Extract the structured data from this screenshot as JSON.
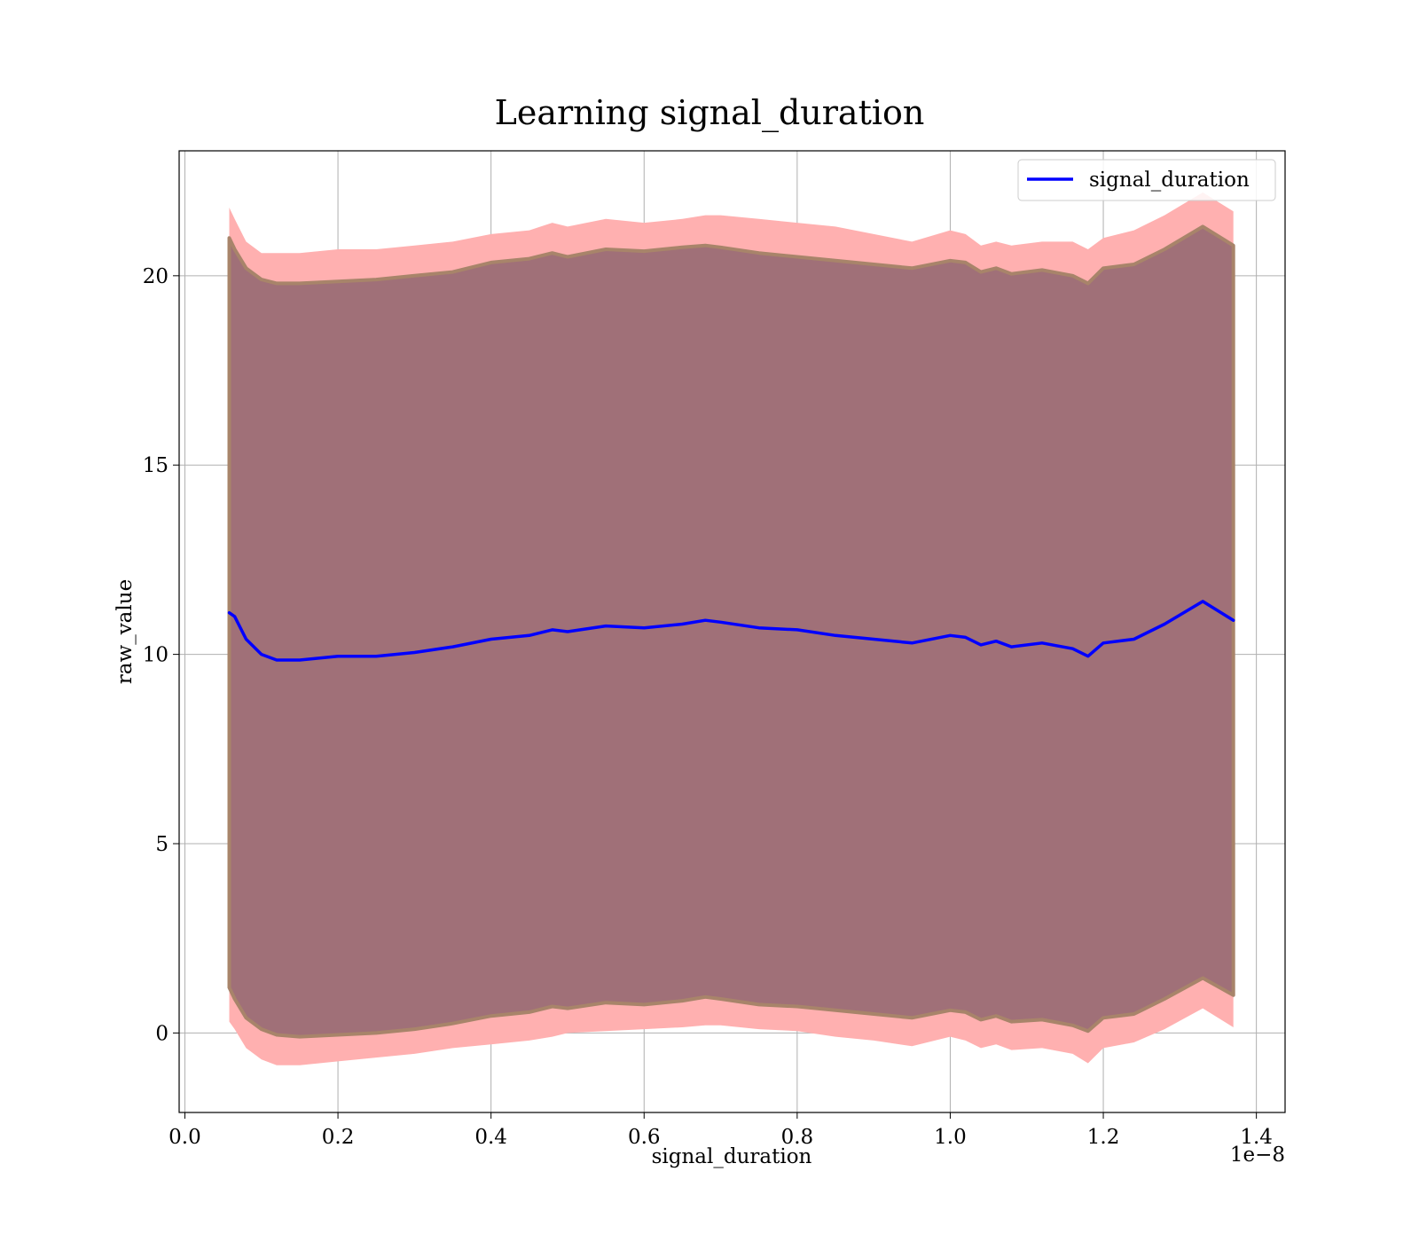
{
  "chart_data": {
    "type": "area",
    "title": "Learning signal_duration",
    "xlabel": "signal_duration",
    "ylabel": "raw_value",
    "x_offset_label": "1e−8",
    "xlim": [
      -0.0075,
      1.4375
    ],
    "ylim": [
      -2.1,
      23.3
    ],
    "x_ticks": [
      0.0,
      0.2,
      0.4,
      0.6,
      0.8,
      1.0,
      1.2,
      1.4
    ],
    "x_tick_labels": [
      "0.0",
      "0.2",
      "0.4",
      "0.6",
      "0.8",
      "1.0",
      "1.2",
      "1.4"
    ],
    "y_ticks": [
      0,
      5,
      10,
      15,
      20
    ],
    "y_tick_labels": [
      "0",
      "5",
      "10",
      "15",
      "20"
    ],
    "grid": true,
    "legend_position": "top-right",
    "colors": {
      "line": "#0000ff",
      "outer_band": "#ffb0b0",
      "inner_band": "#a07078",
      "inner_band_edge": "#a8846a"
    },
    "series": [
      {
        "name": "signal_duration",
        "x": [
          0.058,
          0.065,
          0.08,
          0.1,
          0.12,
          0.15,
          0.2,
          0.25,
          0.3,
          0.35,
          0.4,
          0.45,
          0.48,
          0.5,
          0.55,
          0.6,
          0.65,
          0.68,
          0.7,
          0.75,
          0.8,
          0.85,
          0.9,
          0.95,
          1.0,
          1.02,
          1.04,
          1.06,
          1.08,
          1.12,
          1.16,
          1.18,
          1.2,
          1.24,
          1.28,
          1.33,
          1.37
        ],
        "values": [
          11.1,
          11.0,
          10.4,
          10.0,
          9.85,
          9.85,
          9.95,
          9.95,
          10.05,
          10.2,
          10.4,
          10.5,
          10.65,
          10.6,
          10.75,
          10.7,
          10.8,
          10.9,
          10.85,
          10.7,
          10.65,
          10.5,
          10.4,
          10.3,
          10.5,
          10.45,
          10.25,
          10.35,
          10.2,
          10.3,
          10.15,
          9.95,
          10.3,
          10.4,
          10.8,
          11.4,
          10.9
        ]
      }
    ],
    "bands": [
      {
        "kind": "outer",
        "upper": [
          21.8,
          21.5,
          20.9,
          20.6,
          20.6,
          20.6,
          20.7,
          20.7,
          20.8,
          20.9,
          21.1,
          21.2,
          21.4,
          21.3,
          21.5,
          21.4,
          21.5,
          21.6,
          21.6,
          21.5,
          21.4,
          21.3,
          21.1,
          20.9,
          21.2,
          21.1,
          20.8,
          20.9,
          20.8,
          20.9,
          20.9,
          20.7,
          21.0,
          21.2,
          21.6,
          22.2,
          21.7
        ],
        "lower": [
          0.3,
          0.1,
          -0.4,
          -0.7,
          -0.85,
          -0.85,
          -0.75,
          -0.65,
          -0.55,
          -0.4,
          -0.3,
          -0.2,
          -0.1,
          0.0,
          0.05,
          0.1,
          0.15,
          0.2,
          0.2,
          0.1,
          0.05,
          -0.1,
          -0.2,
          -0.35,
          -0.1,
          -0.2,
          -0.4,
          -0.3,
          -0.45,
          -0.4,
          -0.55,
          -0.8,
          -0.4,
          -0.25,
          0.1,
          0.65,
          0.15
        ]
      },
      {
        "kind": "inner",
        "upper": [
          21.0,
          20.7,
          20.2,
          19.9,
          19.8,
          19.8,
          19.85,
          19.9,
          20.0,
          20.1,
          20.35,
          20.45,
          20.6,
          20.5,
          20.7,
          20.65,
          20.75,
          20.8,
          20.75,
          20.6,
          20.5,
          20.4,
          20.3,
          20.2,
          20.4,
          20.35,
          20.1,
          20.2,
          20.05,
          20.15,
          20.0,
          19.8,
          20.2,
          20.3,
          20.7,
          21.3,
          20.8
        ],
        "lower": [
          1.2,
          0.9,
          0.4,
          0.1,
          -0.05,
          -0.1,
          -0.05,
          0.0,
          0.1,
          0.25,
          0.45,
          0.55,
          0.7,
          0.65,
          0.8,
          0.75,
          0.85,
          0.95,
          0.9,
          0.75,
          0.7,
          0.6,
          0.5,
          0.4,
          0.6,
          0.55,
          0.35,
          0.45,
          0.3,
          0.35,
          0.2,
          0.05,
          0.4,
          0.5,
          0.9,
          1.45,
          1.0
        ]
      }
    ]
  }
}
